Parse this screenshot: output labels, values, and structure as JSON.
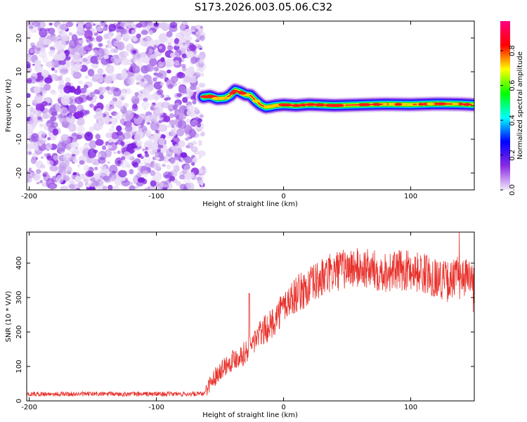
{
  "title": "S173.2026.003.05.06.C32",
  "chart_data": [
    {
      "type": "heatmap",
      "xlabel": "Height of straight line (km)",
      "ylabel": "Frequency (Hz)",
      "xlim": [
        -202,
        150
      ],
      "ylim": [
        -25,
        25
      ],
      "xticks": [
        -200,
        -100,
        0,
        100
      ],
      "xtick_labels": [
        "-200",
        "-100",
        "0",
        "100"
      ],
      "yticks": [
        -20,
        -10,
        0,
        10,
        20
      ],
      "ytick_labels": [
        "-20",
        "-10",
        "0",
        "10",
        "20"
      ],
      "noise_region": {
        "x_start": -202,
        "x_end": -63,
        "description": "scattered low-amplitude purple speckle"
      },
      "ridge": {
        "x": [
          -63,
          -58,
          -52,
          -46,
          -42,
          -38,
          -34,
          -30,
          -26,
          -22,
          -18,
          -14,
          -10,
          -6,
          0,
          10,
          20,
          40,
          60,
          80,
          100,
          120,
          140,
          150
        ],
        "freq": [
          2.5,
          2.8,
          2.0,
          2.2,
          3.0,
          4.5,
          4.0,
          3.2,
          3.0,
          1.5,
          0.2,
          -0.5,
          -0.3,
          0.0,
          0.2,
          0.0,
          0.3,
          0.0,
          0.2,
          0.4,
          0.3,
          0.5,
          0.4,
          0.2
        ]
      },
      "colorbar": {
        "label": "Normalized spectral amplitude",
        "ticks": [
          0.0,
          0.2,
          0.4,
          0.6,
          0.8
        ],
        "tick_labels": [
          "0.0",
          "0.2",
          "0.4",
          "0.6",
          "0.8"
        ],
        "range": [
          0,
          0.97
        ],
        "colors": [
          "#f2e6fb",
          "#8a2be2",
          "#0000ff",
          "#00ffff",
          "#00ff00",
          "#ffff00",
          "#ff0000",
          "#ff0080"
        ]
      }
    },
    {
      "type": "line",
      "xlabel": "Height of straight line (km)",
      "ylabel": "SNR (10 * V/V)",
      "xlim": [
        -202,
        150
      ],
      "ylim": [
        0,
        490
      ],
      "xticks": [
        -200,
        -100,
        0,
        100
      ],
      "xtick_labels": [
        "-200",
        "-100",
        "0",
        "100"
      ],
      "yticks": [
        0,
        100,
        200,
        300,
        400
      ],
      "ytick_labels": [
        "0",
        "100",
        "200",
        "300",
        "400"
      ],
      "series": [
        {
          "name": "SNR",
          "color": "#e8312b",
          "trend_x": [
            -202,
            -63,
            -58,
            -50,
            -40,
            -30,
            -20,
            -10,
            0,
            10,
            20,
            30,
            40,
            50,
            60,
            80,
            100,
            120,
            130,
            140,
            150
          ],
          "trend_y": [
            20,
            20,
            50,
            90,
            120,
            140,
            190,
            220,
            275,
            310,
            330,
            355,
            375,
            385,
            385,
            375,
            380,
            360,
            345,
            370,
            340
          ],
          "spikes": [
            {
              "x": -27,
              "y": 312
            },
            {
              "x": 138,
              "y": 490
            }
          ]
        }
      ]
    }
  ]
}
